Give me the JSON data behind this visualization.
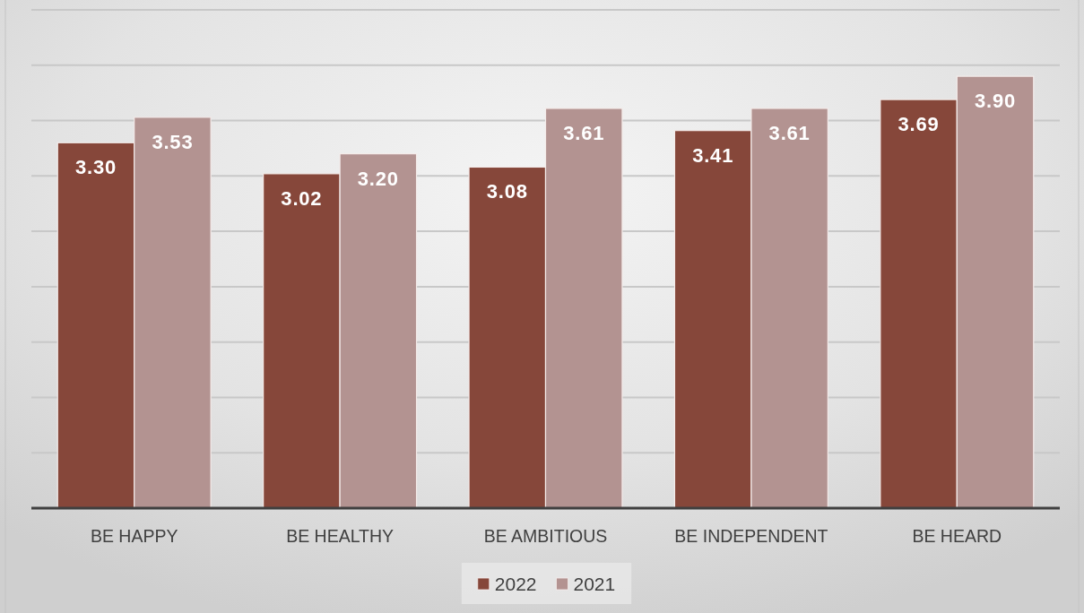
{
  "chart_data": {
    "type": "bar",
    "categories": [
      "BE HAPPY",
      "BE HEALTHY",
      "BE AMBITIOUS",
      "BE INDEPENDENT",
      "BE HEARD"
    ],
    "series": [
      {
        "name": "2022",
        "color": "#86473a",
        "values": [
          3.3,
          3.02,
          3.08,
          3.41,
          3.69
        ],
        "value_labels": [
          "3.30",
          "3.02",
          "3.08",
          "3.41",
          "3.69"
        ]
      },
      {
        "name": "2021",
        "color": "#b39391",
        "values": [
          3.53,
          3.2,
          3.61,
          3.61,
          3.9
        ],
        "value_labels": [
          "3.53",
          "3.20",
          "3.61",
          "3.61",
          "3.90"
        ]
      }
    ],
    "ylim": [
      0,
      4.5
    ],
    "yticks": [
      {
        "value": 0,
        "label": null
      },
      {
        "value": 0.5,
        "label": null
      },
      {
        "value": 1,
        "label": null
      },
      {
        "value": 1.5,
        "label": null
      },
      {
        "value": 2,
        "label": null
      },
      {
        "value": 2.5,
        "label": null
      },
      {
        "value": 3,
        "label": null
      },
      {
        "value": 3.5,
        "label": null
      },
      {
        "value": 4,
        "label": null
      },
      {
        "value": 4.5,
        "label": null
      }
    ],
    "tick_labels": "x",
    "grid": "y",
    "legend": "bottom"
  }
}
